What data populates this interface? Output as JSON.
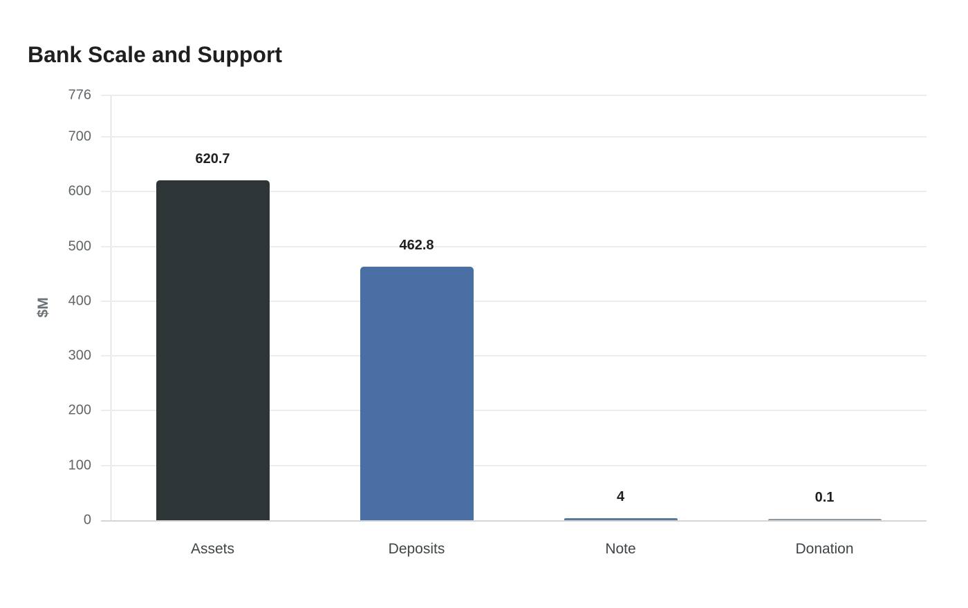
{
  "title": "Bank Scale and Support",
  "chart_data": {
    "type": "bar",
    "title": "Bank Scale and Support",
    "xlabel": "",
    "ylabel": "$M",
    "categories": [
      "Assets",
      "Deposits",
      "Note",
      "Donation"
    ],
    "values": [
      620.7,
      462.8,
      4,
      0.1
    ],
    "value_labels": [
      "620.7",
      "462.8",
      "4",
      "0.1"
    ],
    "colors": [
      "#2e3537",
      "#4a6fa5",
      "#587a9e",
      "#8a9aa6"
    ],
    "ylim": [
      0,
      776
    ],
    "yticks": [
      0,
      100,
      200,
      300,
      400,
      500,
      600,
      700,
      776
    ],
    "grid": true,
    "legend": null
  }
}
